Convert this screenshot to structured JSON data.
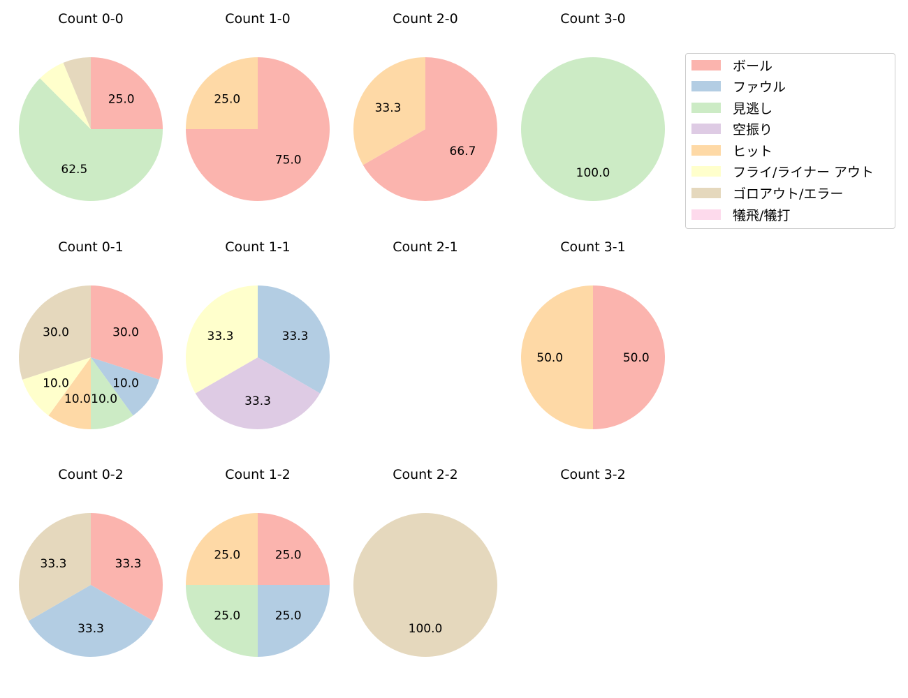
{
  "chart_data": {
    "type": "pie",
    "layout": {
      "rows": 3,
      "cols": 4,
      "legend_position": "upper right"
    },
    "legend": [
      {
        "label": "ボール",
        "color": "#fbb4ae"
      },
      {
        "label": "ファウル",
        "color": "#b3cde3"
      },
      {
        "label": "見逃し",
        "color": "#ccebc5"
      },
      {
        "label": "空振り",
        "color": "#decbe4"
      },
      {
        "label": "ヒット",
        "color": "#fed9a6"
      },
      {
        "label": "フライ/ライナー アウト",
        "color": "#ffffcc"
      },
      {
        "label": "ゴロアウト/エラー",
        "color": "#e5d8bd"
      },
      {
        "label": "犠飛/犠打",
        "color": "#fddaec"
      }
    ],
    "subplots": [
      {
        "title": "Count 0-0",
        "row": 0,
        "col": 0,
        "slices": [
          {
            "category": "ボール",
            "value": 25.0,
            "label": "25.0"
          },
          {
            "category": "見逃し",
            "value": 62.5,
            "label": "62.5"
          },
          {
            "category": "フライ/ライナー アウト",
            "value": 6.25,
            "label": ""
          },
          {
            "category": "ゴロアウト/エラー",
            "value": 6.25,
            "label": ""
          }
        ]
      },
      {
        "title": "Count 1-0",
        "row": 0,
        "col": 1,
        "slices": [
          {
            "category": "ボール",
            "value": 75.0,
            "label": "75.0"
          },
          {
            "category": "ヒット",
            "value": 25.0,
            "label": "25.0"
          }
        ]
      },
      {
        "title": "Count 2-0",
        "row": 0,
        "col": 2,
        "slices": [
          {
            "category": "ボール",
            "value": 66.7,
            "label": "66.7"
          },
          {
            "category": "ヒット",
            "value": 33.3,
            "label": "33.3"
          }
        ]
      },
      {
        "title": "Count 3-0",
        "row": 0,
        "col": 3,
        "slices": [
          {
            "category": "見逃し",
            "value": 100.0,
            "label": "100.0"
          }
        ]
      },
      {
        "title": "Count 0-1",
        "row": 1,
        "col": 0,
        "slices": [
          {
            "category": "ボール",
            "value": 30.0,
            "label": "30.0"
          },
          {
            "category": "ファウル",
            "value": 10.0,
            "label": "10.0"
          },
          {
            "category": "見逃し",
            "value": 10.0,
            "label": "10.0"
          },
          {
            "category": "ヒット",
            "value": 10.0,
            "label": "10.0"
          },
          {
            "category": "フライ/ライナー アウト",
            "value": 10.0,
            "label": "10.0"
          },
          {
            "category": "ゴロアウト/エラー",
            "value": 30.0,
            "label": "30.0"
          }
        ]
      },
      {
        "title": "Count 1-1",
        "row": 1,
        "col": 1,
        "slices": [
          {
            "category": "ファウル",
            "value": 33.3,
            "label": "33.3"
          },
          {
            "category": "空振り",
            "value": 33.3,
            "label": "33.3"
          },
          {
            "category": "フライ/ライナー アウト",
            "value": 33.3,
            "label": "33.3"
          }
        ]
      },
      {
        "title": "Count 2-1",
        "row": 1,
        "col": 2,
        "slices": []
      },
      {
        "title": "Count 3-1",
        "row": 1,
        "col": 3,
        "slices": [
          {
            "category": "ボール",
            "value": 50.0,
            "label": "50.0"
          },
          {
            "category": "ヒット",
            "value": 50.0,
            "label": "50.0"
          }
        ]
      },
      {
        "title": "Count 0-2",
        "row": 2,
        "col": 0,
        "slices": [
          {
            "category": "ボール",
            "value": 33.3,
            "label": "33.3"
          },
          {
            "category": "ファウル",
            "value": 33.3,
            "label": "33.3"
          },
          {
            "category": "ゴロアウト/エラー",
            "value": 33.3,
            "label": "33.3"
          }
        ]
      },
      {
        "title": "Count 1-2",
        "row": 2,
        "col": 1,
        "slices": [
          {
            "category": "ボール",
            "value": 25.0,
            "label": "25.0"
          },
          {
            "category": "ファウル",
            "value": 25.0,
            "label": "25.0"
          },
          {
            "category": "見逃し",
            "value": 25.0,
            "label": "25.0"
          },
          {
            "category": "ヒット",
            "value": 25.0,
            "label": "25.0"
          }
        ]
      },
      {
        "title": "Count 2-2",
        "row": 2,
        "col": 2,
        "slices": [
          {
            "category": "ゴロアウト/エラー",
            "value": 100.0,
            "label": "100.0"
          }
        ]
      },
      {
        "title": "Count 3-2",
        "row": 2,
        "col": 3,
        "slices": []
      }
    ]
  }
}
